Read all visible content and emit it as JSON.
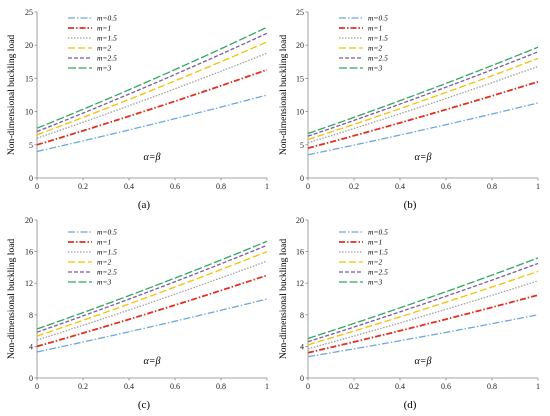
{
  "panels": [
    {
      "label": "(a)",
      "ylabel": "Non-dimensional buckling load",
      "xlabel": "α=β",
      "ylim": [
        0,
        25
      ],
      "yticks": [
        "0",
        "5",
        "10",
        "15",
        "20",
        "25"
      ],
      "xticks": [
        "0",
        "0.2",
        "0.4",
        "0.6",
        "0.8",
        "1"
      ]
    },
    {
      "label": "(b)",
      "ylabel": "Non-dimensional buckling load",
      "xlabel": "α=β",
      "ylim": [
        0,
        25
      ],
      "yticks": [
        "0",
        "5",
        "10",
        "15",
        "20",
        "25"
      ],
      "xticks": [
        "0",
        "0.2",
        "0.4",
        "0.6",
        "0.8",
        "1"
      ]
    },
    {
      "label": "(c)",
      "ylabel": "Non-dimensional buckling load",
      "xlabel": "α=β",
      "ylim": [
        0,
        20
      ],
      "yticks": [
        "0",
        "4",
        "8",
        "12",
        "16",
        "20"
      ],
      "xticks": [
        "0",
        "0.2",
        "0.4",
        "0.6",
        "0.8",
        "1"
      ]
    },
    {
      "label": "(d)",
      "ylabel": "Non-dimensional buckling load",
      "xlabel": "α=β",
      "ylim": [
        0,
        20
      ],
      "yticks": [
        "0",
        "4",
        "8",
        "12",
        "16",
        "20"
      ],
      "xticks": [
        "0",
        "0.2",
        "0.4",
        "0.6",
        "0.8",
        "1"
      ]
    }
  ],
  "series_styles": [
    {
      "name": "m=0.5",
      "color": "#6fa8dc",
      "dash": "7,2,1.5,2"
    },
    {
      "name": "m=1",
      "color": "#e03020",
      "dash": "6,2,1.5,2"
    },
    {
      "name": "m=1.5",
      "color": "#a0a0a0",
      "dash": "1.5,1.5"
    },
    {
      "name": "m=2",
      "color": "#f2c200",
      "dash": "7,3"
    },
    {
      "name": "m=2.5",
      "color": "#7a5aa8",
      "dash": "4,2"
    },
    {
      "name": "m=3",
      "color": "#30a860",
      "dash": "8,2.5"
    }
  ],
  "chart_data": [
    {
      "type": "line",
      "x": [
        0,
        1
      ],
      "ylim": [
        0,
        25
      ],
      "xlim": [
        0,
        1
      ],
      "series": [
        {
          "name": "m=0.5",
          "values": [
            4.0,
            12.5
          ]
        },
        {
          "name": "m=1",
          "values": [
            5.0,
            16.3
          ]
        },
        {
          "name": "m=1.5",
          "values": [
            6.0,
            18.8
          ]
        },
        {
          "name": "m=2",
          "values": [
            6.5,
            20.5
          ]
        },
        {
          "name": "m=2.5",
          "values": [
            7.0,
            21.8
          ]
        },
        {
          "name": "m=3",
          "values": [
            7.5,
            22.7
          ]
        }
      ]
    },
    {
      "type": "line",
      "x": [
        0,
        1
      ],
      "ylim": [
        0,
        25
      ],
      "xlim": [
        0,
        1
      ],
      "series": [
        {
          "name": "m=0.5",
          "values": [
            3.5,
            11.3
          ]
        },
        {
          "name": "m=1",
          "values": [
            4.5,
            14.5
          ]
        },
        {
          "name": "m=1.5",
          "values": [
            5.3,
            16.8
          ]
        },
        {
          "name": "m=2",
          "values": [
            5.8,
            18.0
          ]
        },
        {
          "name": "m=2.5",
          "values": [
            6.3,
            19.0
          ]
        },
        {
          "name": "m=3",
          "values": [
            6.7,
            19.7
          ]
        }
      ]
    },
    {
      "type": "line",
      "x": [
        0,
        1
      ],
      "ylim": [
        0,
        20
      ],
      "xlim": [
        0,
        1
      ],
      "series": [
        {
          "name": "m=0.5",
          "values": [
            3.3,
            10.0
          ]
        },
        {
          "name": "m=1",
          "values": [
            4.0,
            13.0
          ]
        },
        {
          "name": "m=1.5",
          "values": [
            4.8,
            14.8
          ]
        },
        {
          "name": "m=2",
          "values": [
            5.3,
            16.0
          ]
        },
        {
          "name": "m=2.5",
          "values": [
            5.8,
            16.8
          ]
        },
        {
          "name": "m=3",
          "values": [
            6.2,
            17.3
          ]
        }
      ]
    },
    {
      "type": "line",
      "x": [
        0,
        1
      ],
      "ylim": [
        0,
        20
      ],
      "xlim": [
        0,
        1
      ],
      "series": [
        {
          "name": "m=0.5",
          "values": [
            2.7,
            8.0
          ]
        },
        {
          "name": "m=1",
          "values": [
            3.2,
            10.5
          ]
        },
        {
          "name": "m=1.5",
          "values": [
            3.7,
            12.3
          ]
        },
        {
          "name": "m=2",
          "values": [
            4.2,
            13.5
          ]
        },
        {
          "name": "m=2.5",
          "values": [
            4.6,
            14.5
          ]
        },
        {
          "name": "m=3",
          "values": [
            5.0,
            15.2
          ]
        }
      ]
    }
  ]
}
